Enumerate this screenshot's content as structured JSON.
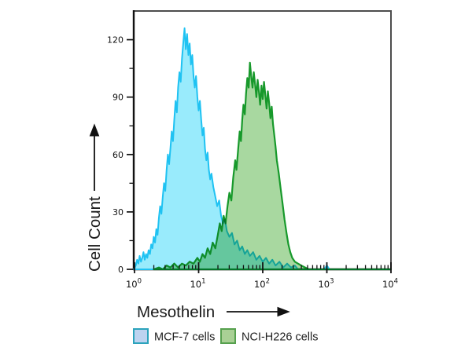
{
  "chart_data": {
    "type": "area",
    "subtype": "flow-cytometry-overlay-histogram",
    "title": "",
    "xlabel": "Mesothelin",
    "ylabel": "Cell Count",
    "x_scale": "log10",
    "xlim": [
      1,
      10000
    ],
    "ylim": [
      0,
      135
    ],
    "grid": false,
    "legend_position": "bottom",
    "yticks": [
      0,
      30,
      60,
      90,
      120
    ],
    "ytick_minor": [
      15,
      45,
      75,
      105
    ],
    "xtick_exponents": [
      0,
      1,
      2,
      3,
      4
    ],
    "xtick_base": "10",
    "frame_color": "#4d4d4d",
    "axis_color": "#111111",
    "series": [
      {
        "name": "MCF-7 cells",
        "stroke": "#1fc2f2",
        "fill": "#99ebfc",
        "blend": "normal",
        "points": [
          [
            -0.01,
            0
          ],
          [
            0.02,
            2
          ],
          [
            0.04,
            5
          ],
          [
            0.06,
            3
          ],
          [
            0.08,
            7
          ],
          [
            0.1,
            4
          ],
          [
            0.12,
            6
          ],
          [
            0.14,
            9
          ],
          [
            0.16,
            5
          ],
          [
            0.18,
            8
          ],
          [
            0.2,
            6
          ],
          [
            0.22,
            10
          ],
          [
            0.24,
            8
          ],
          [
            0.26,
            13
          ],
          [
            0.28,
            11
          ],
          [
            0.3,
            17
          ],
          [
            0.32,
            14
          ],
          [
            0.34,
            21
          ],
          [
            0.36,
            18
          ],
          [
            0.38,
            27
          ],
          [
            0.4,
            33
          ],
          [
            0.42,
            29
          ],
          [
            0.44,
            38
          ],
          [
            0.46,
            45
          ],
          [
            0.48,
            41
          ],
          [
            0.5,
            52
          ],
          [
            0.52,
            60
          ],
          [
            0.54,
            55
          ],
          [
            0.56,
            63
          ],
          [
            0.58,
            72
          ],
          [
            0.6,
            67
          ],
          [
            0.62,
            78
          ],
          [
            0.64,
            88
          ],
          [
            0.66,
            82
          ],
          [
            0.68,
            95
          ],
          [
            0.7,
            103
          ],
          [
            0.72,
            98
          ],
          [
            0.74,
            110
          ],
          [
            0.76,
            118
          ],
          [
            0.78,
            126
          ],
          [
            0.8,
            115
          ],
          [
            0.82,
            123
          ],
          [
            0.84,
            112
          ],
          [
            0.86,
            118
          ],
          [
            0.88,
            107
          ],
          [
            0.9,
            112
          ],
          [
            0.92,
            101
          ],
          [
            0.94,
            95
          ],
          [
            0.96,
            101
          ],
          [
            0.98,
            90
          ],
          [
            1.0,
            83
          ],
          [
            1.02,
            88
          ],
          [
            1.04,
            78
          ],
          [
            1.06,
            70
          ],
          [
            1.08,
            74
          ],
          [
            1.1,
            63
          ],
          [
            1.12,
            57
          ],
          [
            1.14,
            61
          ],
          [
            1.16,
            52
          ],
          [
            1.18,
            47
          ],
          [
            1.2,
            50
          ],
          [
            1.23,
            43
          ],
          [
            1.26,
            38
          ],
          [
            1.29,
            33
          ],
          [
            1.32,
            36
          ],
          [
            1.35,
            28
          ],
          [
            1.38,
            24
          ],
          [
            1.41,
            26
          ],
          [
            1.44,
            20
          ],
          [
            1.48,
            17
          ],
          [
            1.52,
            19
          ],
          [
            1.56,
            13
          ],
          [
            1.6,
            15
          ],
          [
            1.64,
            10
          ],
          [
            1.68,
            12
          ],
          [
            1.72,
            8
          ],
          [
            1.76,
            10
          ],
          [
            1.8,
            7
          ],
          [
            1.85,
            9
          ],
          [
            1.9,
            5
          ],
          [
            1.95,
            7
          ],
          [
            2.0,
            4
          ],
          [
            2.05,
            6
          ],
          [
            2.1,
            3
          ],
          [
            2.15,
            5
          ],
          [
            2.2,
            2
          ],
          [
            2.26,
            4
          ],
          [
            2.32,
            1
          ],
          [
            2.38,
            3
          ],
          [
            2.44,
            1
          ],
          [
            2.5,
            2
          ],
          [
            2.55,
            0
          ],
          [
            2.7,
            0
          ],
          [
            2.96,
            0
          ],
          [
            3.0,
            2
          ],
          [
            3.04,
            0
          ],
          [
            4.0,
            0
          ]
        ]
      },
      {
        "name": "NCI-H226 cells",
        "stroke": "#17992b",
        "fill": "#a8d8a0",
        "blend": "multiply",
        "points": [
          [
            0.3,
            0
          ],
          [
            0.38,
            1
          ],
          [
            0.44,
            0
          ],
          [
            0.5,
            2
          ],
          [
            0.56,
            1
          ],
          [
            0.62,
            3
          ],
          [
            0.68,
            1
          ],
          [
            0.74,
            3
          ],
          [
            0.8,
            2
          ],
          [
            0.86,
            4
          ],
          [
            0.92,
            3
          ],
          [
            0.98,
            6
          ],
          [
            1.02,
            4
          ],
          [
            1.06,
            8
          ],
          [
            1.1,
            6
          ],
          [
            1.14,
            11
          ],
          [
            1.18,
            8
          ],
          [
            1.22,
            14
          ],
          [
            1.26,
            11
          ],
          [
            1.3,
            18
          ],
          [
            1.33,
            24
          ],
          [
            1.36,
            20
          ],
          [
            1.39,
            28
          ],
          [
            1.42,
            24
          ],
          [
            1.45,
            33
          ],
          [
            1.48,
            40
          ],
          [
            1.51,
            36
          ],
          [
            1.54,
            48
          ],
          [
            1.57,
            57
          ],
          [
            1.59,
            52
          ],
          [
            1.62,
            64
          ],
          [
            1.64,
            72
          ],
          [
            1.66,
            67
          ],
          [
            1.68,
            78
          ],
          [
            1.7,
            86
          ],
          [
            1.72,
            81
          ],
          [
            1.74,
            92
          ],
          [
            1.76,
            100
          ],
          [
            1.78,
            95
          ],
          [
            1.8,
            108
          ],
          [
            1.82,
            101
          ],
          [
            1.84,
            95
          ],
          [
            1.86,
            103
          ],
          [
            1.88,
            97
          ],
          [
            1.9,
            90
          ],
          [
            1.92,
            99
          ],
          [
            1.94,
            93
          ],
          [
            1.96,
            86
          ],
          [
            1.98,
            96
          ],
          [
            2.0,
            89
          ],
          [
            2.02,
            98
          ],
          [
            2.04,
            91
          ],
          [
            2.06,
            84
          ],
          [
            2.08,
            93
          ],
          [
            2.1,
            87
          ],
          [
            2.12,
            79
          ],
          [
            2.14,
            85
          ],
          [
            2.16,
            76
          ],
          [
            2.18,
            70
          ],
          [
            2.2,
            64
          ],
          [
            2.22,
            57
          ],
          [
            2.25,
            50
          ],
          [
            2.28,
            42
          ],
          [
            2.31,
            34
          ],
          [
            2.34,
            26
          ],
          [
            2.37,
            19
          ],
          [
            2.4,
            13
          ],
          [
            2.43,
            9
          ],
          [
            2.46,
            6
          ],
          [
            2.5,
            4
          ],
          [
            2.55,
            3
          ],
          [
            2.6,
            2
          ],
          [
            2.66,
            1
          ],
          [
            2.72,
            0
          ],
          [
            4.0,
            0
          ]
        ]
      }
    ]
  },
  "legend": {
    "items": [
      {
        "label": "MCF-7 cells",
        "swatch_fill": "#bdd3f0",
        "swatch_border": "#2ca3bc"
      },
      {
        "label": "NCI-H226 cells",
        "swatch_fill": "#a9d095",
        "swatch_border": "#56a04e"
      }
    ]
  }
}
